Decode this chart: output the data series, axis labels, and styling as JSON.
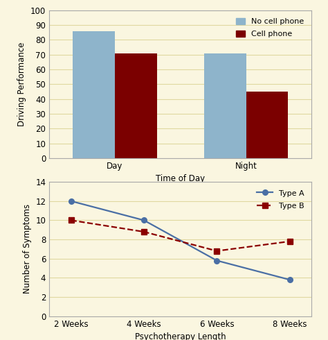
{
  "bg_color": "#FAF6E0",
  "top_chart": {
    "categories": [
      "Day",
      "Night"
    ],
    "no_cell": [
      86,
      71
    ],
    "cell": [
      71,
      45
    ],
    "bar_color_no_cell": "#8EB4CB",
    "bar_color_cell": "#7B0000",
    "ylabel": "Driving Performance",
    "xlabel": "Time of Day",
    "ylim": [
      0,
      100
    ],
    "yticks": [
      0,
      10,
      20,
      30,
      40,
      50,
      60,
      70,
      80,
      90,
      100
    ],
    "legend_no_cell": "No cell phone",
    "legend_cell": "Cell phone",
    "bar_width": 0.32,
    "grid_color": "#E0D8A0"
  },
  "bottom_chart": {
    "x_labels": [
      "2 Weeks",
      "4 Weeks",
      "6 Weeks",
      "8 Weeks"
    ],
    "type_a": [
      12,
      10,
      5.8,
      3.8
    ],
    "type_b": [
      10,
      8.8,
      6.8,
      7.8
    ],
    "color_a": "#4A6FA5",
    "color_b": "#8B0000",
    "ylabel": "Number of Symptoms",
    "xlabel": "Psychotherapy Length",
    "ylim": [
      0,
      14
    ],
    "yticks": [
      0,
      2,
      4,
      6,
      8,
      10,
      12,
      14
    ],
    "legend_a": "Type A",
    "legend_b": "Type B",
    "grid_color": "#E0D8A0"
  }
}
